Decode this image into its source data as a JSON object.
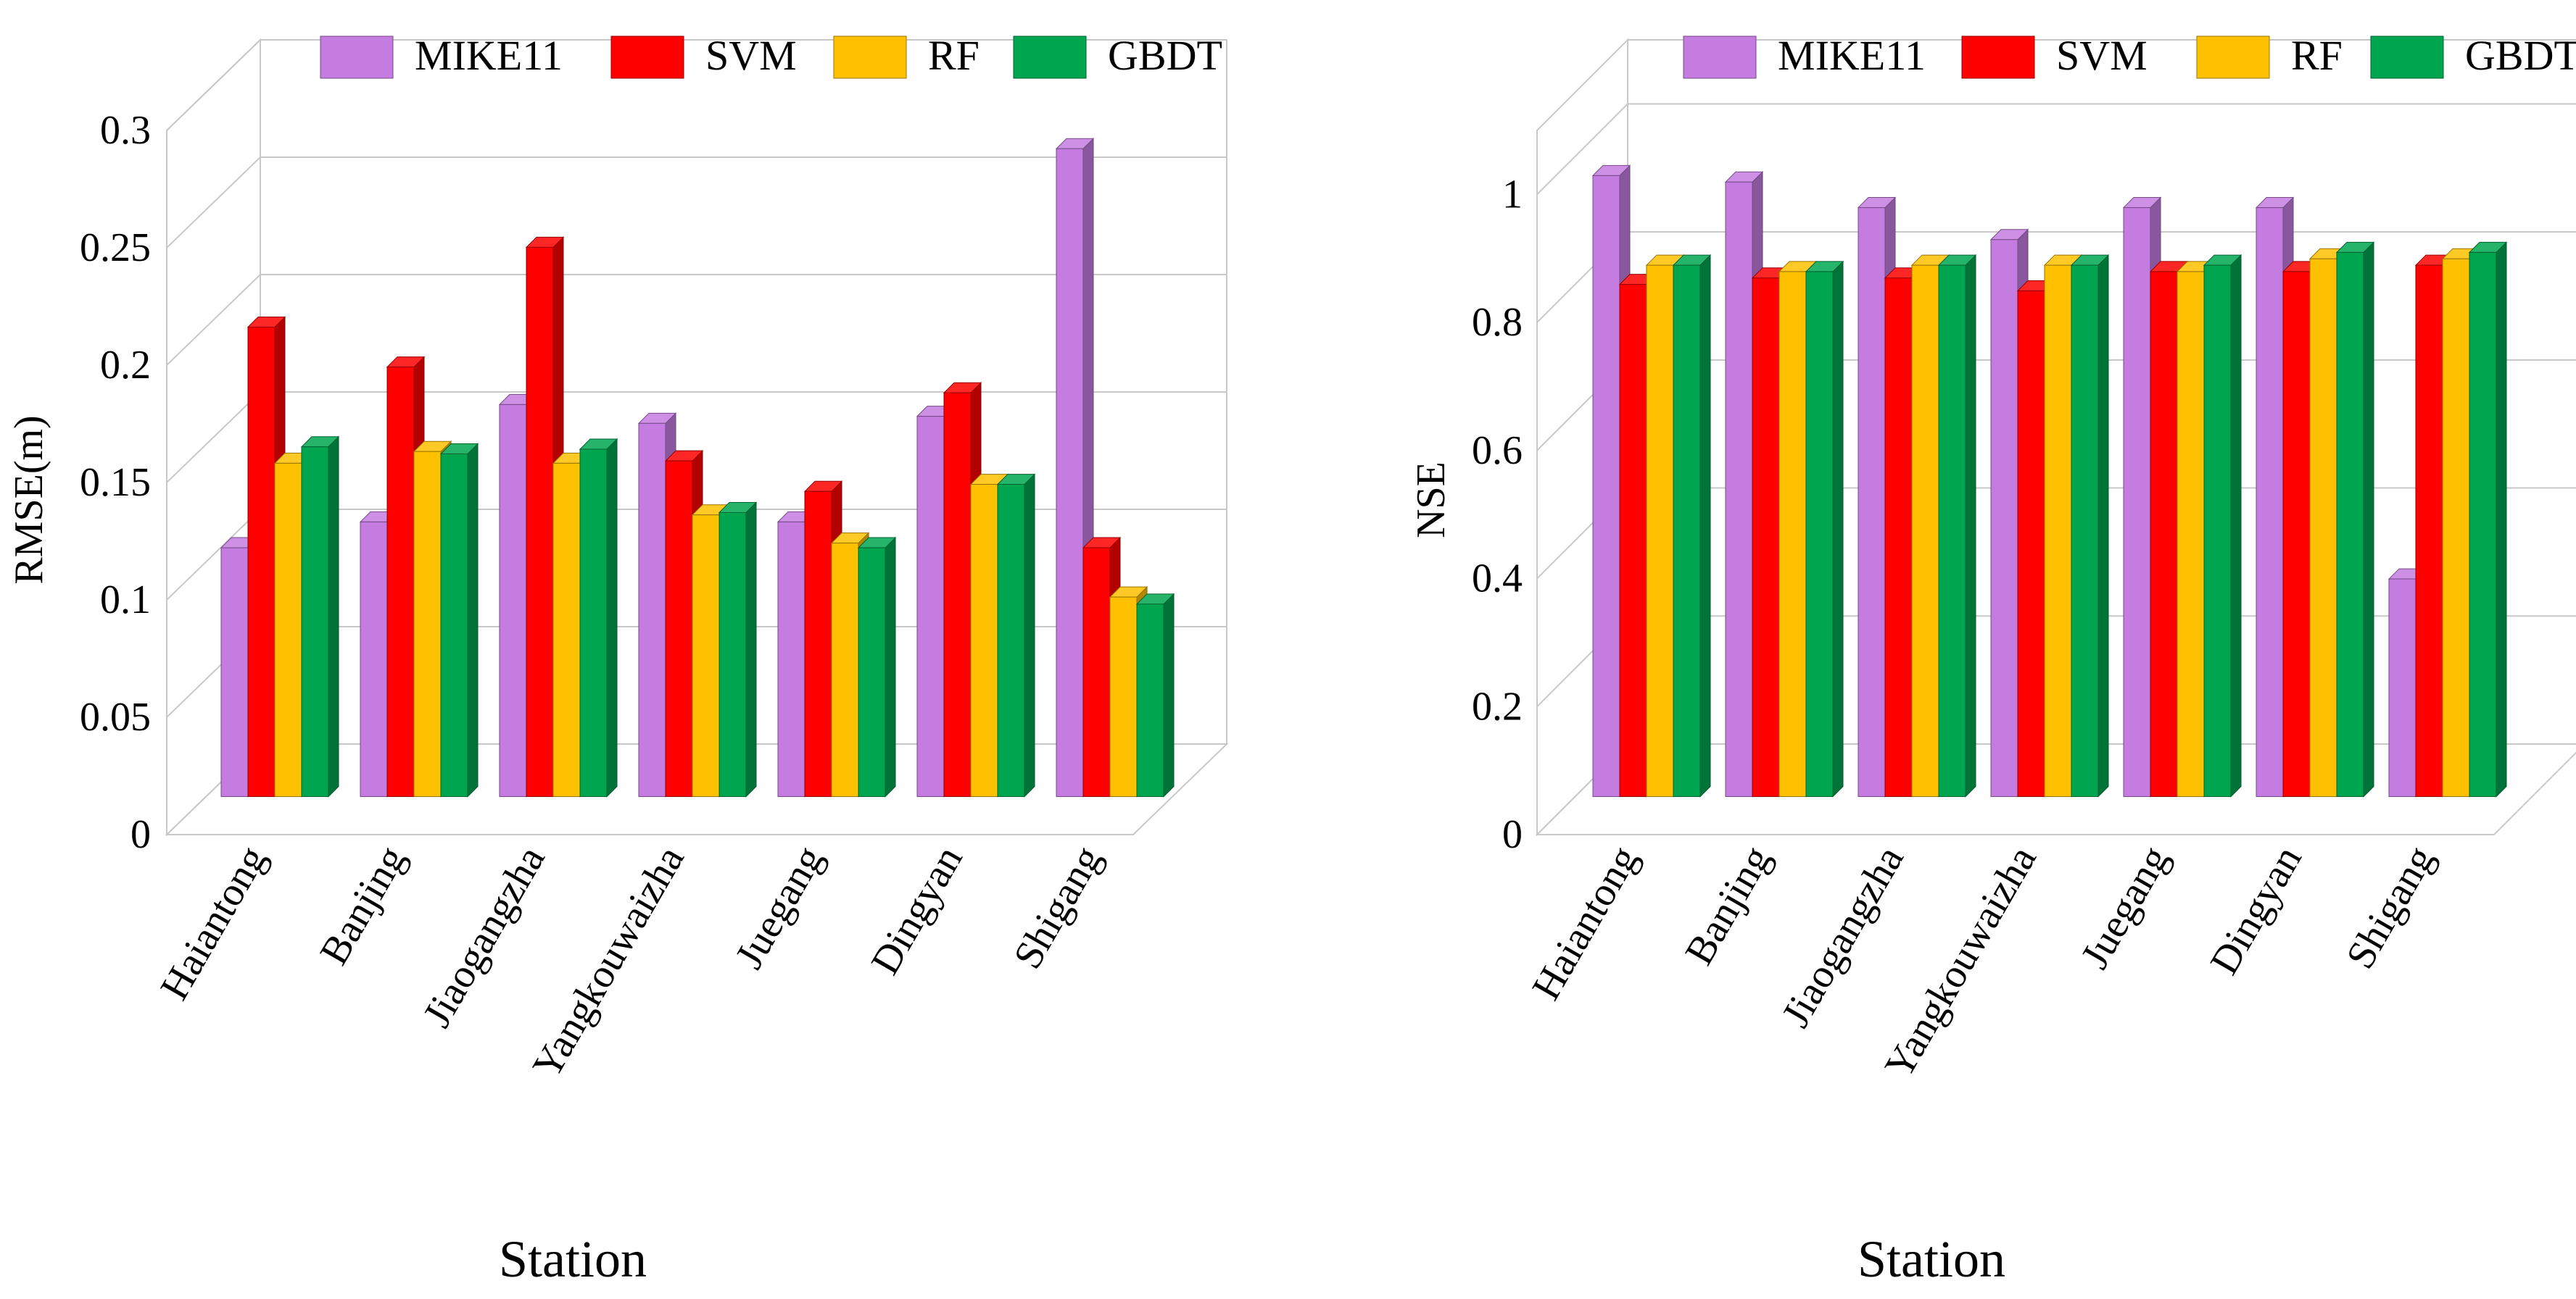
{
  "colors": {
    "MIKE11": "#c47ce0",
    "SVM": "#ff0000",
    "RF": "#ffc000",
    "GBDT": "#00a550"
  },
  "chart_data": [
    {
      "type": "bar",
      "title": "",
      "xlabel": "Station",
      "ylabel": "RMSE(m)",
      "ylim": [
        0,
        0.3
      ],
      "yticks": [
        0,
        0.05,
        0.1,
        0.15,
        0.2,
        0.25,
        0.3
      ],
      "ytick_labels": [
        "0",
        "0.05",
        "0.1",
        "0.15",
        "0.2",
        "0.25",
        "0.3"
      ],
      "categories": [
        "Haiantong",
        "Banjing",
        "Jiaogangzha",
        "Yangkouwaizha",
        "Juegang",
        "Dingyan",
        "Shigang"
      ],
      "series": [
        {
          "name": "MIKE11",
          "values": [
            0.106,
            0.117,
            0.167,
            0.159,
            0.117,
            0.162,
            0.276
          ]
        },
        {
          "name": "SVM",
          "values": [
            0.2,
            0.183,
            0.234,
            0.143,
            0.13,
            0.172,
            0.106
          ]
        },
        {
          "name": "RF",
          "values": [
            0.142,
            0.147,
            0.142,
            0.12,
            0.108,
            0.133,
            0.085
          ]
        },
        {
          "name": "GBDT",
          "values": [
            0.149,
            0.146,
            0.148,
            0.121,
            0.106,
            0.133,
            0.082
          ]
        }
      ],
      "legend": "top"
    },
    {
      "type": "bar",
      "title": "",
      "xlabel": "Station",
      "ylabel": "NSE",
      "ylim": [
        0,
        1.1
      ],
      "yticks": [
        0,
        0.2,
        0.4,
        0.6,
        0.8,
        1
      ],
      "ytick_labels": [
        "0",
        "0.2",
        "0.4",
        "0.6",
        "0.8",
        "1"
      ],
      "categories": [
        "Haiantong",
        "Banjing",
        "Jiaogangzha",
        "Yangkouwaizha",
        "Juegang",
        "Dingyan",
        "Shigang"
      ],
      "series": [
        {
          "name": "MIKE11",
          "values": [
            0.97,
            0.96,
            0.92,
            0.87,
            0.92,
            0.92,
            0.34
          ]
        },
        {
          "name": "SVM",
          "values": [
            0.8,
            0.81,
            0.81,
            0.79,
            0.82,
            0.82,
            0.83
          ]
        },
        {
          "name": "RF",
          "values": [
            0.83,
            0.82,
            0.83,
            0.83,
            0.82,
            0.84,
            0.84
          ]
        },
        {
          "name": "GBDT",
          "values": [
            0.83,
            0.82,
            0.83,
            0.83,
            0.83,
            0.85,
            0.85
          ]
        }
      ],
      "legend": "top"
    }
  ]
}
